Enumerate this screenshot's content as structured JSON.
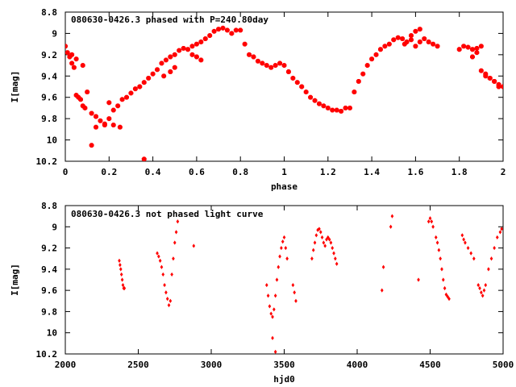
{
  "chart_data": [
    {
      "type": "scatter",
      "title": "080630-0426.3 phased with P=240.80day",
      "xlabel": "phase",
      "ylabel": "I[mag]",
      "xlim": [
        0,
        2
      ],
      "ylim": [
        10.2,
        8.8
      ],
      "y_inverted": true,
      "xticks": [
        "0",
        "0.2",
        "0.4",
        "0.6",
        "0.8",
        "1",
        "1.2",
        "1.4",
        "1.6",
        "1.8",
        "2"
      ],
      "xtick_values": [
        0,
        0.2,
        0.4,
        0.6,
        0.8,
        1,
        1.2,
        1.4,
        1.6,
        1.8,
        2
      ],
      "yticks": [
        "8.8",
        "9",
        "9.2",
        "9.4",
        "9.6",
        "9.8",
        "10",
        "10.2"
      ],
      "ytick_values": [
        8.8,
        9.0,
        9.2,
        9.4,
        9.6,
        9.8,
        10.0,
        10.2
      ],
      "marker": "filled-star",
      "color": "#ff0000",
      "series": [
        {
          "x": [
            0.0,
            0.01,
            0.02,
            0.03,
            0.04,
            0.05,
            0.06,
            0.07,
            0.08,
            0.09,
            0.1,
            0.12,
            0.14,
            0.16,
            0.18,
            0.2,
            0.22,
            0.24,
            0.26,
            0.28,
            0.3,
            0.32,
            0.34,
            0.36,
            0.38,
            0.4,
            0.42,
            0.44,
            0.46,
            0.48,
            0.5,
            0.52,
            0.54,
            0.56,
            0.58,
            0.6,
            0.62,
            0.64,
            0.66,
            0.68,
            0.7,
            0.72,
            0.74,
            0.76,
            0.78,
            0.8,
            0.82,
            0.84,
            0.86,
            0.88,
            0.9,
            0.92,
            0.94,
            0.96,
            0.98,
            1.0,
            1.02,
            1.04,
            1.06,
            1.08,
            1.1,
            1.12,
            1.14,
            1.16,
            1.18,
            1.2,
            1.22,
            1.24,
            1.26,
            1.28,
            1.3,
            1.32,
            1.34,
            1.36,
            1.38,
            1.4,
            1.42,
            1.44,
            1.46,
            1.48,
            1.5,
            1.52,
            1.54,
            1.56,
            1.58,
            1.6,
            1.62,
            1.64,
            1.66,
            1.68,
            1.7,
            1.8,
            1.82,
            1.84,
            1.86,
            1.88,
            1.9,
            1.92,
            1.94,
            1.96,
            1.98,
            2.0,
            0.12,
            0.36,
            0.03,
            0.05,
            0.08,
            0.22,
            0.25,
            0.58,
            0.6,
            0.62,
            1.6,
            1.62,
            1.86,
            1.88,
            1.9,
            1.92,
            1.94,
            1.96,
            1.98,
            0.14,
            0.18,
            0.2,
            1.55,
            1.58,
            0.45,
            0.48,
            0.5
          ],
          "y": [
            9.12,
            9.18,
            9.22,
            9.28,
            9.32,
            9.58,
            9.6,
            9.62,
            9.68,
            9.7,
            9.55,
            9.75,
            9.78,
            9.82,
            9.85,
            9.8,
            9.72,
            9.68,
            9.62,
            9.6,
            9.56,
            9.52,
            9.5,
            9.46,
            9.42,
            9.38,
            9.34,
            9.28,
            9.25,
            9.22,
            9.2,
            9.16,
            9.14,
            9.15,
            9.12,
            9.1,
            9.08,
            9.05,
            9.02,
            8.98,
            8.96,
            8.95,
            8.97,
            9.0,
            8.97,
            8.97,
            9.1,
            9.2,
            9.22,
            9.26,
            9.28,
            9.3,
            9.32,
            9.3,
            9.28,
            9.3,
            9.36,
            9.42,
            9.46,
            9.5,
            9.55,
            9.6,
            9.63,
            9.66,
            9.68,
            9.7,
            9.72,
            9.72,
            9.73,
            9.7,
            9.7,
            9.55,
            9.45,
            9.38,
            9.3,
            9.24,
            9.2,
            9.15,
            9.12,
            9.1,
            9.06,
            9.04,
            9.05,
            9.08,
            9.02,
            8.98,
            8.96,
            9.05,
            9.08,
            9.1,
            9.12,
            9.15,
            9.12,
            9.13,
            9.15,
            9.18,
            9.12,
            9.38,
            9.42,
            9.45,
            9.48,
            9.5,
            10.05,
            10.18,
            9.2,
            9.24,
            9.3,
            9.86,
            9.88,
            9.2,
            9.22,
            9.25,
            9.12,
            9.08,
            9.22,
            9.14,
            9.35,
            9.4,
            9.42,
            9.45,
            9.5,
            9.88,
            9.86,
            9.65,
            9.1,
            9.06,
            9.4,
            9.36,
            9.32
          ]
        }
      ]
    },
    {
      "type": "scatter",
      "title": "080630-0426.3 not phased light curve",
      "xlabel": "hjd0",
      "ylabel": "I[mag]",
      "xlim": [
        2000,
        5000
      ],
      "ylim": [
        10.2,
        8.8
      ],
      "y_inverted": true,
      "xticks": [
        "2000",
        "2500",
        "3000",
        "3500",
        "4000",
        "4500",
        "5000"
      ],
      "xtick_values": [
        2000,
        2500,
        3000,
        3500,
        4000,
        4500,
        5000
      ],
      "yticks": [
        "8.8",
        "9",
        "9.2",
        "9.4",
        "9.6",
        "9.8",
        "10",
        "10.2"
      ],
      "ytick_values": [
        8.8,
        9.0,
        9.2,
        9.4,
        9.6,
        9.8,
        10.0,
        10.2
      ],
      "marker": "filled-diamond",
      "color": "#ff0000",
      "series": [
        {
          "x": [
            2370,
            2375,
            2380,
            2385,
            2390,
            2395,
            2400,
            2405,
            2630,
            2640,
            2650,
            2660,
            2670,
            2680,
            2690,
            2700,
            2710,
            2720,
            2730,
            2740,
            2750,
            2760,
            2770,
            2880,
            3380,
            3390,
            3400,
            3410,
            3420,
            3430,
            3440,
            3450,
            3460,
            3470,
            3480,
            3490,
            3500,
            3510,
            3520,
            3560,
            3570,
            3580,
            3690,
            3700,
            3710,
            3720,
            3730,
            3740,
            3750,
            3760,
            3770,
            3780,
            3790,
            3800,
            3810,
            3820,
            3830,
            3840,
            3850,
            3860,
            4170,
            4180,
            4230,
            4240,
            4420,
            4490,
            4500,
            4510,
            4520,
            4540,
            4550,
            4560,
            4570,
            4580,
            4590,
            4600,
            4610,
            4620,
            4630,
            4720,
            4730,
            4740,
            4760,
            4780,
            4800,
            4830,
            4840,
            4850,
            4860,
            4870,
            4880,
            4900,
            4920,
            4940,
            4960,
            4980,
            4990,
            3420,
            3440
          ],
          "y": [
            9.32,
            9.36,
            9.4,
            9.45,
            9.5,
            9.55,
            9.58,
            9.58,
            9.25,
            9.28,
            9.32,
            9.38,
            9.45,
            9.55,
            9.62,
            9.68,
            9.74,
            9.7,
            9.45,
            9.3,
            9.15,
            9.05,
            8.95,
            9.18,
            9.55,
            9.65,
            9.75,
            9.82,
            9.85,
            9.78,
            9.65,
            9.5,
            9.38,
            9.28,
            9.2,
            9.14,
            9.1,
            9.2,
            9.3,
            9.55,
            9.62,
            9.7,
            9.3,
            9.22,
            9.15,
            9.08,
            9.03,
            9.02,
            9.05,
            9.1,
            9.15,
            9.18,
            9.12,
            9.1,
            9.12,
            9.15,
            9.2,
            9.25,
            9.3,
            9.35,
            9.6,
            9.38,
            9.0,
            8.9,
            9.5,
            8.95,
            8.92,
            8.95,
            9.0,
            9.1,
            9.15,
            9.22,
            9.3,
            9.4,
            9.5,
            9.58,
            9.64,
            9.66,
            9.68,
            9.08,
            9.12,
            9.15,
            9.2,
            9.25,
            9.3,
            9.55,
            9.58,
            9.62,
            9.65,
            9.6,
            9.55,
            9.4,
            9.3,
            9.2,
            9.1,
            9.05,
            9.02,
            10.05,
            10.18
          ]
        }
      ]
    }
  ]
}
